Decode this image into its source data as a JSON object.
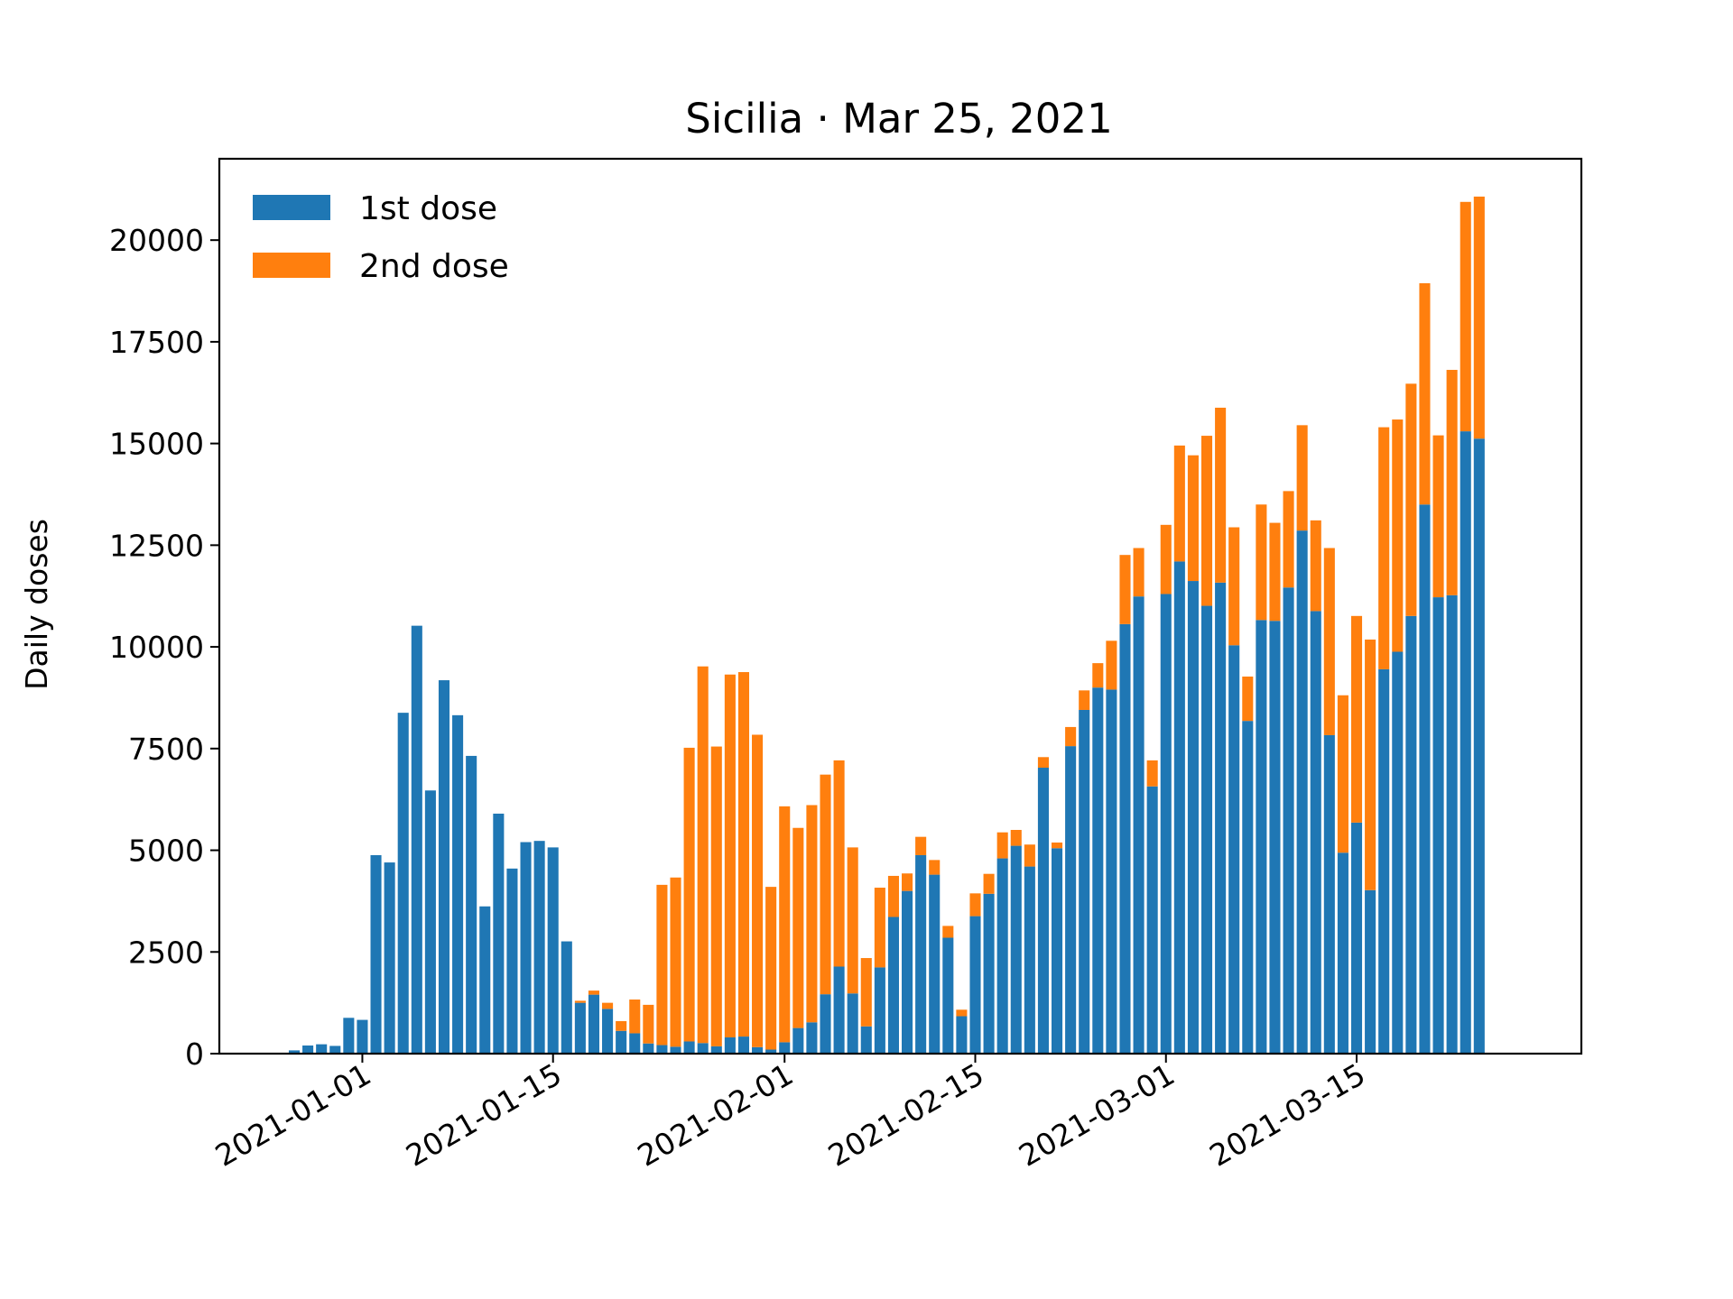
{
  "chart_data": {
    "type": "bar",
    "stacked": true,
    "title": "Sicilia · Mar 25, 2021",
    "xlabel": "",
    "ylabel": "Daily doses",
    "ylim": [
      0,
      22000
    ],
    "xlim": [
      "2020-12-21T12:00",
      "2021-03-31T12:00"
    ],
    "y_ticks": [
      0,
      2500,
      5000,
      7500,
      10000,
      12500,
      15000,
      17500,
      20000
    ],
    "x_ticks": [
      "2021-01-01",
      "2021-01-15",
      "2021-02-01",
      "2021-02-15",
      "2021-03-01",
      "2021-03-15"
    ],
    "grid": false,
    "legend_position": "top-left",
    "start_date": "2020-12-27",
    "colors": {
      "first": "#1f77b4",
      "second": "#ff7f0e"
    },
    "series": [
      {
        "name": "1st dose",
        "color": "#1f77b4",
        "values": [
          80,
          200,
          230,
          190,
          880,
          830,
          4880,
          4700,
          8380,
          10520,
          6470,
          9180,
          8320,
          7320,
          3620,
          5900,
          4550,
          5200,
          5230,
          5070,
          2760,
          1250,
          1450,
          1100,
          560,
          500,
          250,
          210,
          170,
          300,
          260,
          180,
          400,
          420,
          160,
          100,
          280,
          630,
          770,
          1460,
          2140,
          1480,
          670,
          2120,
          3360,
          4000,
          4880,
          4400,
          2850,
          920,
          3380,
          3930,
          4800,
          5110,
          4600,
          7030,
          5050,
          7560,
          8450,
          9000,
          8950,
          10560,
          11240,
          6570,
          11300,
          12100,
          11620,
          11010,
          11580,
          10040,
          8180,
          10660,
          10640,
          11460,
          12860,
          10880,
          7830,
          4940,
          5680,
          4020,
          9450,
          9880,
          10760,
          13500,
          11220,
          11270,
          15300,
          15120
        ]
      },
      {
        "name": "2nd dose",
        "color": "#ff7f0e",
        "values": [
          0,
          0,
          0,
          0,
          0,
          0,
          0,
          0,
          0,
          0,
          0,
          0,
          0,
          0,
          0,
          0,
          0,
          0,
          0,
          0,
          0,
          50,
          100,
          150,
          240,
          830,
          950,
          3940,
          4160,
          7220,
          9260,
          7370,
          8920,
          8960,
          7680,
          4000,
          5800,
          4920,
          5340,
          5400,
          5070,
          3590,
          1680,
          1960,
          1010,
          430,
          450,
          360,
          290,
          160,
          560,
          490,
          640,
          390,
          540,
          260,
          140,
          470,
          480,
          600,
          1200,
          1700,
          1190,
          640,
          1700,
          2850,
          3090,
          4180,
          4300,
          2900,
          1090,
          2840,
          2410,
          2370,
          2590,
          2230,
          4600,
          3870,
          5080,
          6160,
          5950,
          5710,
          5710,
          5440,
          3980,
          5540,
          5640,
          5950
        ]
      }
    ]
  }
}
